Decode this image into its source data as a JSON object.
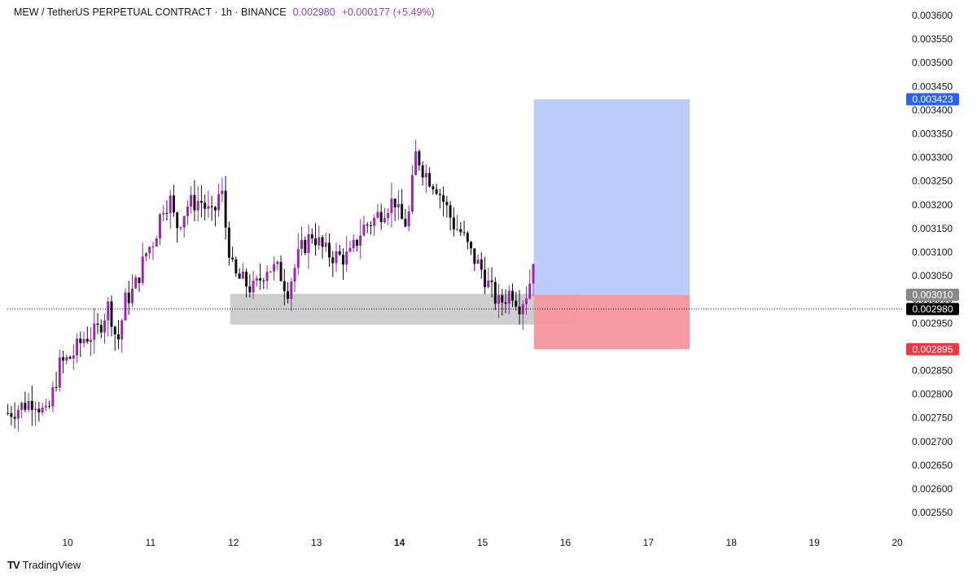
{
  "header": {
    "symbol": "MEW / TetherUS PERPETUAL CONTRACT · 1h · BINANCE",
    "price": "0.002980",
    "change": "+0.000177 (+5.49%)"
  },
  "footer": {
    "brand": "TradingView",
    "logo_glyph": "TV"
  },
  "colors": {
    "bull": "#9c27b0",
    "bear": "#111111",
    "target_zone": "#b8c9fb",
    "stop_zone": "#f7969e",
    "demand_zone": "#c9c9c9",
    "target_tag": "#2962ff",
    "entry_tag": "#888888",
    "price_tag": "#000000",
    "stop_tag": "#f23645"
  },
  "chart_data": {
    "type": "candlestick",
    "title": "MEW / TetherUS PERPETUAL CONTRACT · 1h · BINANCE",
    "ylim": [
      0.00252,
      0.00362
    ],
    "y_ticks": [
      "0.002550",
      "0.002600",
      "0.002650",
      "0.002700",
      "0.002750",
      "0.002800",
      "0.002850",
      "0.002900",
      "0.002950",
      "0.003000",
      "0.003050",
      "0.003100",
      "0.003150",
      "0.003200",
      "0.003250",
      "0.003300",
      "0.003350",
      "0.003400",
      "0.003450",
      "0.003500",
      "0.003550",
      "0.003600"
    ],
    "x_ticks": [
      {
        "label": "10",
        "day": 10,
        "bold": false
      },
      {
        "label": "11",
        "day": 11,
        "bold": false
      },
      {
        "label": "12",
        "day": 12,
        "bold": false
      },
      {
        "label": "13",
        "day": 13,
        "bold": false
      },
      {
        "label": "14",
        "day": 14,
        "bold": true
      },
      {
        "label": "15",
        "day": 15,
        "bold": false
      },
      {
        "label": "16",
        "day": 16,
        "bold": false
      },
      {
        "label": "17",
        "day": 17,
        "bold": false
      },
      {
        "label": "18",
        "day": 18,
        "bold": false
      },
      {
        "label": "19",
        "day": 19,
        "bold": false
      },
      {
        "label": "20",
        "day": 20,
        "bold": false
      }
    ],
    "close_path": [
      [
        9.28,
        0.00276
      ],
      [
        9.45,
        0.002775
      ],
      [
        9.6,
        0.00279
      ],
      [
        9.75,
        0.00275
      ],
      [
        9.9,
        0.00286
      ],
      [
        10.05,
        0.00288
      ],
      [
        10.2,
        0.00292
      ],
      [
        10.35,
        0.00293
      ],
      [
        10.5,
        0.00299
      ],
      [
        10.6,
        0.002905
      ],
      [
        10.7,
        0.003
      ],
      [
        10.8,
        0.00302
      ],
      [
        10.95,
        0.0031
      ],
      [
        11.05,
        0.00313
      ],
      [
        11.15,
        0.0032
      ],
      [
        11.25,
        0.00321
      ],
      [
        11.3,
        0.00315
      ],
      [
        11.45,
        0.0032
      ],
      [
        11.6,
        0.00321
      ],
      [
        11.75,
        0.00317
      ],
      [
        11.85,
        0.00324
      ],
      [
        11.9,
        0.00316
      ],
      [
        12.0,
        0.00305
      ],
      [
        12.1,
        0.00304
      ],
      [
        12.25,
        0.00302
      ],
      [
        12.4,
        0.00307
      ],
      [
        12.55,
        0.00306
      ],
      [
        12.65,
        0.00302
      ],
      [
        12.8,
        0.0031
      ],
      [
        12.95,
        0.00314
      ],
      [
        13.1,
        0.0031
      ],
      [
        13.25,
        0.00309
      ],
      [
        13.4,
        0.00309
      ],
      [
        13.55,
        0.00315
      ],
      [
        13.7,
        0.00317
      ],
      [
        13.85,
        0.0032
      ],
      [
        13.95,
        0.00321
      ],
      [
        14.0,
        0.00317
      ],
      [
        14.1,
        0.00316
      ],
      [
        14.2,
        0.00331
      ],
      [
        14.3,
        0.00327
      ],
      [
        14.45,
        0.00324
      ],
      [
        14.55,
        0.0032
      ],
      [
        14.65,
        0.00316
      ],
      [
        14.75,
        0.00314
      ],
      [
        14.85,
        0.0031
      ],
      [
        15.0,
        0.00306
      ],
      [
        15.1,
        0.00302
      ],
      [
        15.2,
        0.00299
      ],
      [
        15.25,
        0.003
      ],
      [
        15.35,
        0.00302
      ],
      [
        15.45,
        0.00299
      ],
      [
        15.55,
        0.00302
      ],
      [
        15.62,
        0.00308
      ],
      [
        15.64,
        0.00298
      ]
    ],
    "demand_zone": {
      "x_start": 11.96,
      "x_end": 16.14,
      "y_low": 0.002947,
      "y_high": 0.003012
    },
    "position": {
      "type": "long",
      "x_start": 15.62,
      "x_end": 17.5,
      "target": 0.003423,
      "entry": 0.00301,
      "stop": 0.002895
    },
    "price_labels": [
      {
        "label": "0.003423",
        "value": 0.003423,
        "color_key": "target_tag"
      },
      {
        "label": "0.003010",
        "value": 0.00301,
        "color_key": "entry_tag"
      },
      {
        "label": "0.002980",
        "value": 0.00298,
        "color_key": "price_tag"
      },
      {
        "label": "0.002895",
        "value": 0.002895,
        "color_key": "stop_tag"
      }
    ],
    "last_price": 0.00298
  }
}
